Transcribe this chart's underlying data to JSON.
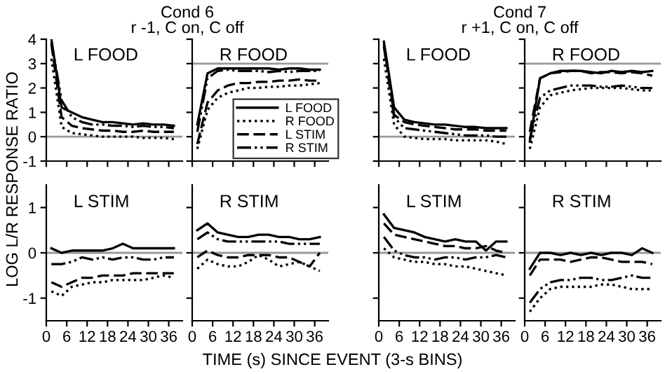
{
  "chart_data": [
    {
      "type": "line",
      "title": "Cond 6",
      "subtitle": "r -1, C on, C off",
      "xlabel": "TIME (s) SINCE EVENT (3-s BINS)",
      "ylabel": "LOG L/R RESPONSE RATIO",
      "annotations": [
        "L FOOD"
      ],
      "x": [
        1.5,
        4.5,
        7.5,
        10.5,
        13.5,
        16.5,
        19.5,
        22.5,
        25.5,
        28.5,
        31.5,
        34.5,
        37.5
      ],
      "xlim": [
        0,
        40
      ],
      "ylim": [
        -1,
        4
      ],
      "xticks": [
        0,
        6,
        12,
        18,
        24,
        30,
        36
      ],
      "yticks": [
        -1,
        0,
        1,
        2,
        3,
        4
      ],
      "tick_labels": "y",
      "ref_lines": [
        {
          "axis": "y",
          "value": 0,
          "color": "#999999"
        }
      ],
      "series": [
        {
          "color": "#000000",
          "line_style": "solid",
          "values": [
            4,
            1.2,
            1.0,
            0.8,
            0.7,
            0.6,
            0.6,
            0.55,
            0.5,
            0.55,
            0.5,
            0.5,
            0.45
          ]
        },
        {
          "color": "#000000",
          "line_style": "dotted",
          "values": [
            3.2,
            0.4,
            0.15,
            0.1,
            0.05,
            0.0,
            0.0,
            0.0,
            0.0,
            -0.05,
            -0.05,
            -0.05,
            -0.1
          ]
        },
        {
          "color": "#000000",
          "line_style": "dashed",
          "values": [
            3.8,
            0.8,
            0.45,
            0.35,
            0.3,
            0.25,
            0.25,
            0.2,
            0.2,
            0.25,
            0.2,
            0.2,
            0.2
          ]
        },
        {
          "color": "#000000",
          "line_style": "dashdot",
          "values": [
            3.9,
            1.5,
            0.8,
            0.6,
            0.5,
            0.5,
            0.45,
            0.45,
            0.4,
            0.45,
            0.4,
            0.4,
            0.35
          ]
        }
      ]
    },
    {
      "type": "line",
      "annotations": [
        "R FOOD"
      ],
      "x": [
        1.5,
        4.5,
        7.5,
        10.5,
        13.5,
        16.5,
        19.5,
        22.5,
        25.5,
        28.5,
        31.5,
        34.5,
        37.5
      ],
      "xlim": [
        0,
        40
      ],
      "ylim": [
        -1,
        4
      ],
      "xticks": [
        0,
        6,
        12,
        18,
        24,
        30,
        36
      ],
      "yticks": [
        -1,
        0,
        1,
        2,
        3,
        4
      ],
      "tick_labels": false,
      "legend": "bottom right",
      "ref_lines": [
        {
          "axis": "y",
          "value": 3,
          "color": "#999999"
        }
      ],
      "series": [
        {
          "name": "L FOOD",
          "color": "#000000",
          "line_style": "solid",
          "values": [
            0.5,
            2.6,
            2.8,
            2.8,
            2.8,
            2.8,
            2.8,
            2.8,
            2.75,
            2.8,
            2.8,
            2.75,
            2.75
          ]
        },
        {
          "name": "R FOOD",
          "color": "#000000",
          "line_style": "dotted",
          "values": [
            -0.5,
            1.1,
            1.6,
            1.8,
            1.9,
            2.0,
            2.0,
            2.05,
            2.05,
            2.1,
            2.1,
            2.15,
            2.2
          ]
        },
        {
          "name": "L STIM",
          "color": "#000000",
          "line_style": "dashed",
          "values": [
            -0.3,
            1.4,
            1.9,
            2.1,
            2.2,
            2.2,
            2.25,
            2.25,
            2.3,
            2.3,
            2.35,
            2.3,
            2.3
          ]
        },
        {
          "name": "R STIM",
          "color": "#000000",
          "line_style": "dashdot",
          "values": [
            0.2,
            2.4,
            2.7,
            2.75,
            2.7,
            2.7,
            2.7,
            2.65,
            2.7,
            2.65,
            2.7,
            2.7,
            2.7
          ]
        }
      ]
    },
    {
      "type": "line",
      "annotations": [
        "L STIM"
      ],
      "x": [
        1.5,
        4.5,
        7.5,
        10.5,
        13.5,
        16.5,
        19.5,
        22.5,
        25.5,
        28.5,
        31.5,
        34.5,
        37.5
      ],
      "xlim": [
        0,
        40
      ],
      "ylim": [
        -1.5,
        1.5
      ],
      "xticks": [
        0,
        6,
        12,
        18,
        24,
        30,
        36
      ],
      "yticks": [
        -1,
        0,
        1
      ],
      "ref_lines": [
        {
          "axis": "y",
          "value": 0,
          "color": "#999999"
        }
      ],
      "series": [
        {
          "color": "#000000",
          "line_style": "solid",
          "values": [
            0.1,
            0.0,
            0.05,
            0.05,
            0.05,
            0.05,
            0.1,
            0.2,
            0.1,
            0.1,
            0.1,
            0.1,
            0.1
          ]
        },
        {
          "color": "#000000",
          "line_style": "dotted",
          "values": [
            -0.85,
            -0.95,
            -0.75,
            -0.7,
            -0.65,
            -0.65,
            -0.6,
            -0.6,
            -0.6,
            -0.6,
            -0.55,
            -0.5,
            -0.55
          ]
        },
        {
          "color": "#000000",
          "line_style": "dashed",
          "values": [
            -0.65,
            -0.75,
            -0.65,
            -0.55,
            -0.55,
            -0.5,
            -0.5,
            -0.5,
            -0.45,
            -0.45,
            -0.45,
            -0.45,
            -0.45
          ]
        },
        {
          "color": "#000000",
          "line_style": "dashdot",
          "values": [
            -0.25,
            -0.25,
            -0.2,
            -0.1,
            -0.15,
            -0.1,
            -0.15,
            -0.1,
            -0.1,
            -0.15,
            -0.15,
            -0.1,
            -0.1
          ]
        }
      ]
    },
    {
      "type": "line",
      "annotations": [
        "R STIM"
      ],
      "x": [
        1.5,
        4.5,
        7.5,
        10.5,
        13.5,
        16.5,
        19.5,
        22.5,
        25.5,
        28.5,
        31.5,
        34.5,
        37.5
      ],
      "xlim": [
        0,
        40
      ],
      "ylim": [
        -1.5,
        1.5
      ],
      "xticks": [
        0,
        6,
        12,
        18,
        24,
        30,
        36
      ],
      "yticks": [
        -1,
        0,
        1
      ],
      "tick_labels": "x",
      "ref_lines": [
        {
          "axis": "y",
          "value": 0,
          "color": "#999999"
        }
      ],
      "series": [
        {
          "color": "#000000",
          "line_style": "solid",
          "values": [
            0.5,
            0.65,
            0.45,
            0.4,
            0.35,
            0.35,
            0.4,
            0.4,
            0.35,
            0.35,
            0.3,
            0.3,
            0.35
          ]
        },
        {
          "color": "#000000",
          "line_style": "dotted",
          "values": [
            -0.35,
            -0.15,
            -0.25,
            -0.3,
            -0.3,
            -0.2,
            -0.05,
            -0.15,
            -0.3,
            -0.25,
            -0.2,
            -0.3,
            -0.4
          ]
        },
        {
          "color": "#000000",
          "line_style": "dashed",
          "values": [
            -0.1,
            0.05,
            -0.05,
            -0.1,
            -0.1,
            -0.05,
            -0.05,
            -0.05,
            -0.1,
            -0.1,
            -0.2,
            -0.3,
            0.0
          ]
        },
        {
          "color": "#000000",
          "line_style": "dashdot",
          "values": [
            0.3,
            0.45,
            0.3,
            0.25,
            0.25,
            0.25,
            0.25,
            0.25,
            0.25,
            0.2,
            0.2,
            0.2,
            0.2
          ]
        }
      ]
    },
    {
      "type": "line",
      "title": "Cond 7",
      "subtitle": "r +1, C on, C off",
      "annotations": [
        "L FOOD"
      ],
      "x": [
        1.5,
        4.5,
        7.5,
        10.5,
        13.5,
        16.5,
        19.5,
        22.5,
        25.5,
        28.5,
        31.5,
        34.5,
        37.5
      ],
      "xlim": [
        0,
        40
      ],
      "ylim": [
        -1,
        4
      ],
      "xticks": [
        0,
        6,
        12,
        18,
        24,
        30,
        36
      ],
      "yticks": [
        -1,
        0,
        1,
        2,
        3,
        4
      ],
      "tick_labels": false,
      "ref_lines": [
        {
          "axis": "y",
          "value": 0,
          "color": "#999999"
        }
      ],
      "series": [
        {
          "color": "#000000",
          "line_style": "solid",
          "values": [
            3.9,
            1.2,
            0.7,
            0.6,
            0.55,
            0.5,
            0.5,
            0.45,
            0.4,
            0.4,
            0.35,
            0.35,
            0.35
          ]
        },
        {
          "color": "#000000",
          "line_style": "dotted",
          "values": [
            3.2,
            0.5,
            0.0,
            -0.05,
            -0.1,
            -0.1,
            -0.1,
            -0.15,
            -0.15,
            -0.15,
            -0.15,
            -0.2,
            -0.3
          ]
        },
        {
          "color": "#000000",
          "line_style": "dashed",
          "values": [
            3.8,
            0.9,
            0.6,
            0.5,
            0.45,
            0.4,
            0.35,
            0.3,
            0.3,
            0.3,
            0.25,
            0.25,
            0.25
          ]
        },
        {
          "color": "#000000",
          "line_style": "dashdot",
          "values": [
            3.7,
            0.8,
            0.35,
            0.3,
            0.25,
            0.2,
            0.15,
            0.1,
            0.05,
            0.05,
            0.05,
            0.0,
            0.0
          ]
        }
      ]
    },
    {
      "type": "line",
      "annotations": [
        "R FOOD"
      ],
      "x": [
        1.5,
        4.5,
        7.5,
        10.5,
        13.5,
        16.5,
        19.5,
        22.5,
        25.5,
        28.5,
        31.5,
        34.5,
        37.5
      ],
      "xlim": [
        0,
        40
      ],
      "ylim": [
        -1,
        4
      ],
      "xticks": [
        0,
        6,
        12,
        18,
        24,
        30,
        36
      ],
      "yticks": [
        -1,
        0,
        1,
        2,
        3,
        4
      ],
      "tick_labels": false,
      "ref_lines": [
        {
          "axis": "y",
          "value": 3,
          "color": "#999999"
        }
      ],
      "series": [
        {
          "color": "#000000",
          "line_style": "solid",
          "values": [
            -0.2,
            2.4,
            2.6,
            2.7,
            2.7,
            2.7,
            2.65,
            2.6,
            2.7,
            2.65,
            2.7,
            2.65,
            2.7
          ]
        },
        {
          "color": "#000000",
          "line_style": "dotted",
          "values": [
            -0.5,
            1.2,
            1.7,
            1.8,
            1.9,
            1.95,
            2.0,
            2.0,
            2.0,
            2.0,
            1.95,
            1.9,
            1.9
          ]
        },
        {
          "color": "#000000",
          "line_style": "dashed",
          "values": [
            0.2,
            2.4,
            2.6,
            2.65,
            2.7,
            2.7,
            2.6,
            2.65,
            2.65,
            2.6,
            2.65,
            2.6,
            2.5
          ]
        },
        {
          "color": "#000000",
          "line_style": "dashdot",
          "values": [
            -0.1,
            1.6,
            1.9,
            2.0,
            2.1,
            2.1,
            2.1,
            2.05,
            2.05,
            2.1,
            2.05,
            2.0,
            2.0
          ]
        }
      ]
    },
    {
      "type": "line",
      "annotations": [
        "L STIM"
      ],
      "x": [
        1.5,
        4.5,
        7.5,
        10.5,
        13.5,
        16.5,
        19.5,
        22.5,
        25.5,
        28.5,
        31.5,
        34.5,
        37.5
      ],
      "xlim": [
        0,
        40
      ],
      "ylim": [
        -1.5,
        1.5
      ],
      "xticks": [
        0,
        6,
        12,
        18,
        24,
        30,
        36
      ],
      "yticks": [
        -1,
        0,
        1
      ],
      "tick_labels": "x",
      "ref_lines": [
        {
          "axis": "y",
          "value": 0,
          "color": "#999999"
        }
      ],
      "series": [
        {
          "color": "#000000",
          "line_style": "solid",
          "values": [
            0.85,
            0.55,
            0.5,
            0.45,
            0.35,
            0.3,
            0.25,
            0.3,
            0.25,
            0.25,
            0.05,
            0.25,
            0.25
          ]
        },
        {
          "color": "#000000",
          "line_style": "dotted",
          "values": [
            0.1,
            -0.1,
            -0.15,
            -0.2,
            -0.2,
            -0.25,
            -0.25,
            -0.3,
            -0.3,
            -0.35,
            -0.4,
            -0.45,
            -0.5
          ]
        },
        {
          "color": "#000000",
          "line_style": "dashed",
          "values": [
            0.65,
            0.4,
            0.35,
            0.3,
            0.25,
            0.2,
            0.15,
            0.15,
            0.1,
            0.1,
            0.15,
            0.05,
            0.0
          ]
        },
        {
          "color": "#000000",
          "line_style": "dashdot",
          "values": [
            0.35,
            0.05,
            -0.05,
            -0.1,
            -0.1,
            -0.15,
            -0.1,
            -0.1,
            -0.15,
            -0.1,
            -0.1,
            -0.05,
            -0.1
          ]
        }
      ]
    },
    {
      "type": "line",
      "annotations": [
        "R STIM"
      ],
      "x": [
        1.5,
        4.5,
        7.5,
        10.5,
        13.5,
        16.5,
        19.5,
        22.5,
        25.5,
        28.5,
        31.5,
        34.5,
        37.5
      ],
      "xlim": [
        0,
        40
      ],
      "ylim": [
        -1.5,
        1.5
      ],
      "xticks": [
        0,
        6,
        12,
        18,
        24,
        30,
        36
      ],
      "yticks": [
        -1,
        0,
        1
      ],
      "tick_labels": "x",
      "ref_lines": [
        {
          "axis": "y",
          "value": 0,
          "color": "#999999"
        }
      ],
      "series": [
        {
          "color": "#000000",
          "line_style": "solid",
          "values": [
            -0.35,
            0.0,
            0.0,
            -0.05,
            0.0,
            -0.05,
            0.0,
            -0.05,
            0.0,
            0.0,
            -0.05,
            0.1,
            0.0
          ]
        },
        {
          "color": "#000000",
          "line_style": "dotted",
          "values": [
            -1.3,
            -1.0,
            -0.8,
            -0.75,
            -0.75,
            -0.75,
            -0.75,
            -0.7,
            -0.7,
            -0.75,
            -0.8,
            -0.8,
            -0.8
          ]
        },
        {
          "color": "#000000",
          "line_style": "dashed",
          "values": [
            -0.5,
            -0.15,
            -0.15,
            -0.15,
            -0.2,
            -0.15,
            -0.1,
            -0.1,
            -0.15,
            -0.2,
            -0.2,
            -0.2,
            -0.25
          ]
        },
        {
          "color": "#000000",
          "line_style": "dashdot",
          "values": [
            -1.1,
            -0.8,
            -0.65,
            -0.6,
            -0.6,
            -0.55,
            -0.55,
            -0.6,
            -0.6,
            -0.55,
            -0.5,
            -0.55,
            -0.55
          ]
        }
      ]
    }
  ]
}
